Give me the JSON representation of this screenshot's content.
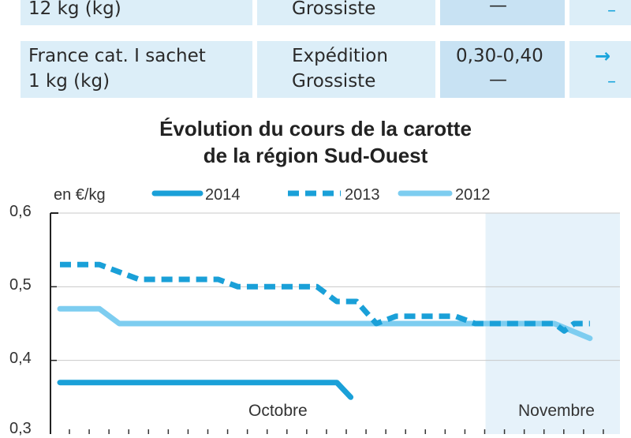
{
  "table": {
    "rows": [
      {
        "product_line2": "12 kg (kg)",
        "stages": [
          "Grossiste"
        ],
        "price": [
          "—"
        ],
        "trend": [
          "–"
        ]
      },
      {
        "product_line1": "France cat. I sachet",
        "product_line2": "1 kg (kg)",
        "stages": [
          "Expédition",
          "Grossiste"
        ],
        "price": [
          "0,30-0,40",
          "—"
        ],
        "trend": [
          "→",
          "–"
        ]
      }
    ]
  },
  "chart_data": {
    "type": "line",
    "title": [
      "Évolution du cours de la carotte",
      "de la région Sud-Ouest"
    ],
    "ylabel": "en €/kg",
    "ylim": [
      0.3,
      0.6
    ],
    "yticks": [
      "0,6",
      "0,5",
      "0,4",
      "0,3"
    ],
    "x_index_range": [
      0,
      28
    ],
    "months": [
      {
        "label": "Octobre",
        "start": 0,
        "end": 22
      },
      {
        "label": "Novembre",
        "start": 22,
        "end": 28
      }
    ],
    "legend": [
      "2014",
      "2013",
      "2012"
    ],
    "series": [
      {
        "name": "2014",
        "style": "solid",
        "color": "#1aa0d8",
        "points": [
          [
            0,
            0.37
          ],
          [
            1,
            0.37
          ],
          [
            2,
            0.37
          ],
          [
            3,
            0.37
          ],
          [
            4,
            0.37
          ],
          [
            5,
            0.37
          ],
          [
            6,
            0.37
          ],
          [
            7,
            0.37
          ],
          [
            8,
            0.37
          ],
          [
            9,
            0.37
          ],
          [
            10,
            0.37
          ],
          [
            11,
            0.37
          ],
          [
            12,
            0.37
          ],
          [
            13,
            0.37
          ],
          [
            14,
            0.37
          ],
          [
            14.7,
            0.35
          ]
        ]
      },
      {
        "name": "2013",
        "style": "dashed",
        "color": "#1aa0d8",
        "points": [
          [
            0,
            0.53
          ],
          [
            2,
            0.53
          ],
          [
            3,
            0.52
          ],
          [
            4,
            0.51
          ],
          [
            6,
            0.51
          ],
          [
            8,
            0.51
          ],
          [
            9,
            0.5
          ],
          [
            11,
            0.5
          ],
          [
            13,
            0.5
          ],
          [
            14,
            0.48
          ],
          [
            15,
            0.48
          ],
          [
            16,
            0.45
          ],
          [
            17,
            0.46
          ],
          [
            20,
            0.46
          ],
          [
            21,
            0.45
          ],
          [
            24,
            0.45
          ],
          [
            25,
            0.45
          ],
          [
            25.5,
            0.44
          ],
          [
            26,
            0.45
          ],
          [
            26.8,
            0.45
          ]
        ]
      },
      {
        "name": "2012",
        "style": "solid-light",
        "color": "#7dcdf0",
        "points": [
          [
            0,
            0.47
          ],
          [
            2,
            0.47
          ],
          [
            3,
            0.45
          ],
          [
            10,
            0.45
          ],
          [
            20,
            0.45
          ],
          [
            25,
            0.45
          ],
          [
            26.8,
            0.43
          ]
        ]
      }
    ]
  }
}
